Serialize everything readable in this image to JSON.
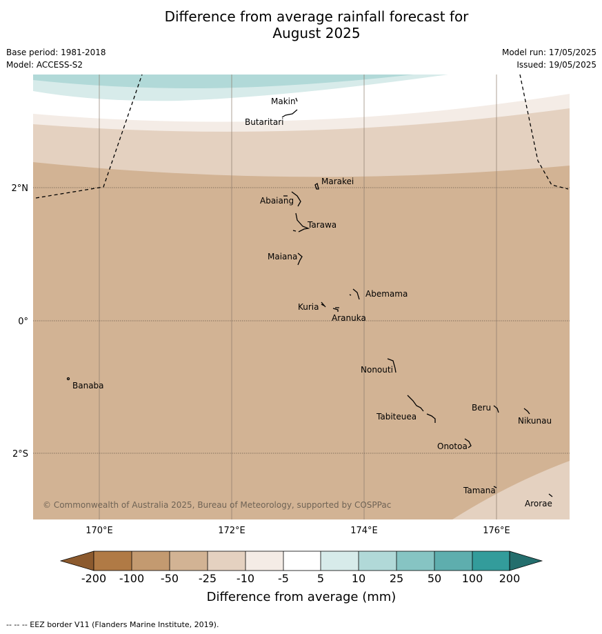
{
  "title": {
    "line1": "Difference from average rainfall forecast for",
    "line2": "August 2025"
  },
  "meta": {
    "base_period": "Base period: 1981-2018",
    "model": "Model: ACCESS-S2",
    "model_run": "Model run: 17/05/2025",
    "issued": "Issued: 19/05/2025"
  },
  "map": {
    "lat_labels": [
      "2°N",
      "0°",
      "2°S"
    ],
    "lon_labels": [
      "170°E",
      "172°E",
      "174°E",
      "176°E"
    ],
    "copyright": "© Commonwealth of Australia 2025, Bureau of Meteorology, supported by COSPPac",
    "places": [
      {
        "name": "Makin"
      },
      {
        "name": "Butaritari"
      },
      {
        "name": "Marakei"
      },
      {
        "name": "Abaiang"
      },
      {
        "name": "Tarawa"
      },
      {
        "name": "Maiana"
      },
      {
        "name": "Abemama"
      },
      {
        "name": "Kuria"
      },
      {
        "name": "Aranuka"
      },
      {
        "name": "Nonouti"
      },
      {
        "name": "Banaba"
      },
      {
        "name": "Beru"
      },
      {
        "name": "Nikunau"
      },
      {
        "name": "Tabiteuea"
      },
      {
        "name": "Onotoa"
      },
      {
        "name": "Tamana"
      },
      {
        "name": "Arorae"
      }
    ]
  },
  "legend": {
    "label": "Difference from average (mm)",
    "ticks": [
      "-200",
      "-100",
      "-50",
      "-25",
      "-10",
      "-5",
      "5",
      "10",
      "25",
      "50",
      "100",
      "200"
    ],
    "colors": {
      "below_-200": "#8c5a2e",
      "-200_-100": "#b07a45",
      "-100_-50": "#c39a70",
      "-50_-25": "#d2b394",
      "-25_-10": "#e4d1c0",
      "-10_-5": "#f4ece6",
      "-5_5": "#ffffff",
      "5_10": "#d7ebea",
      "10_25": "#b1d9d8",
      "25_50": "#86c4c3",
      "50_100": "#5eaeae",
      "100_200": "#339c9b",
      "above_200": "#246e6d"
    }
  },
  "footer": "--  --  -- EEZ border V11 (Flanders Marine Institute, 2019)."
}
